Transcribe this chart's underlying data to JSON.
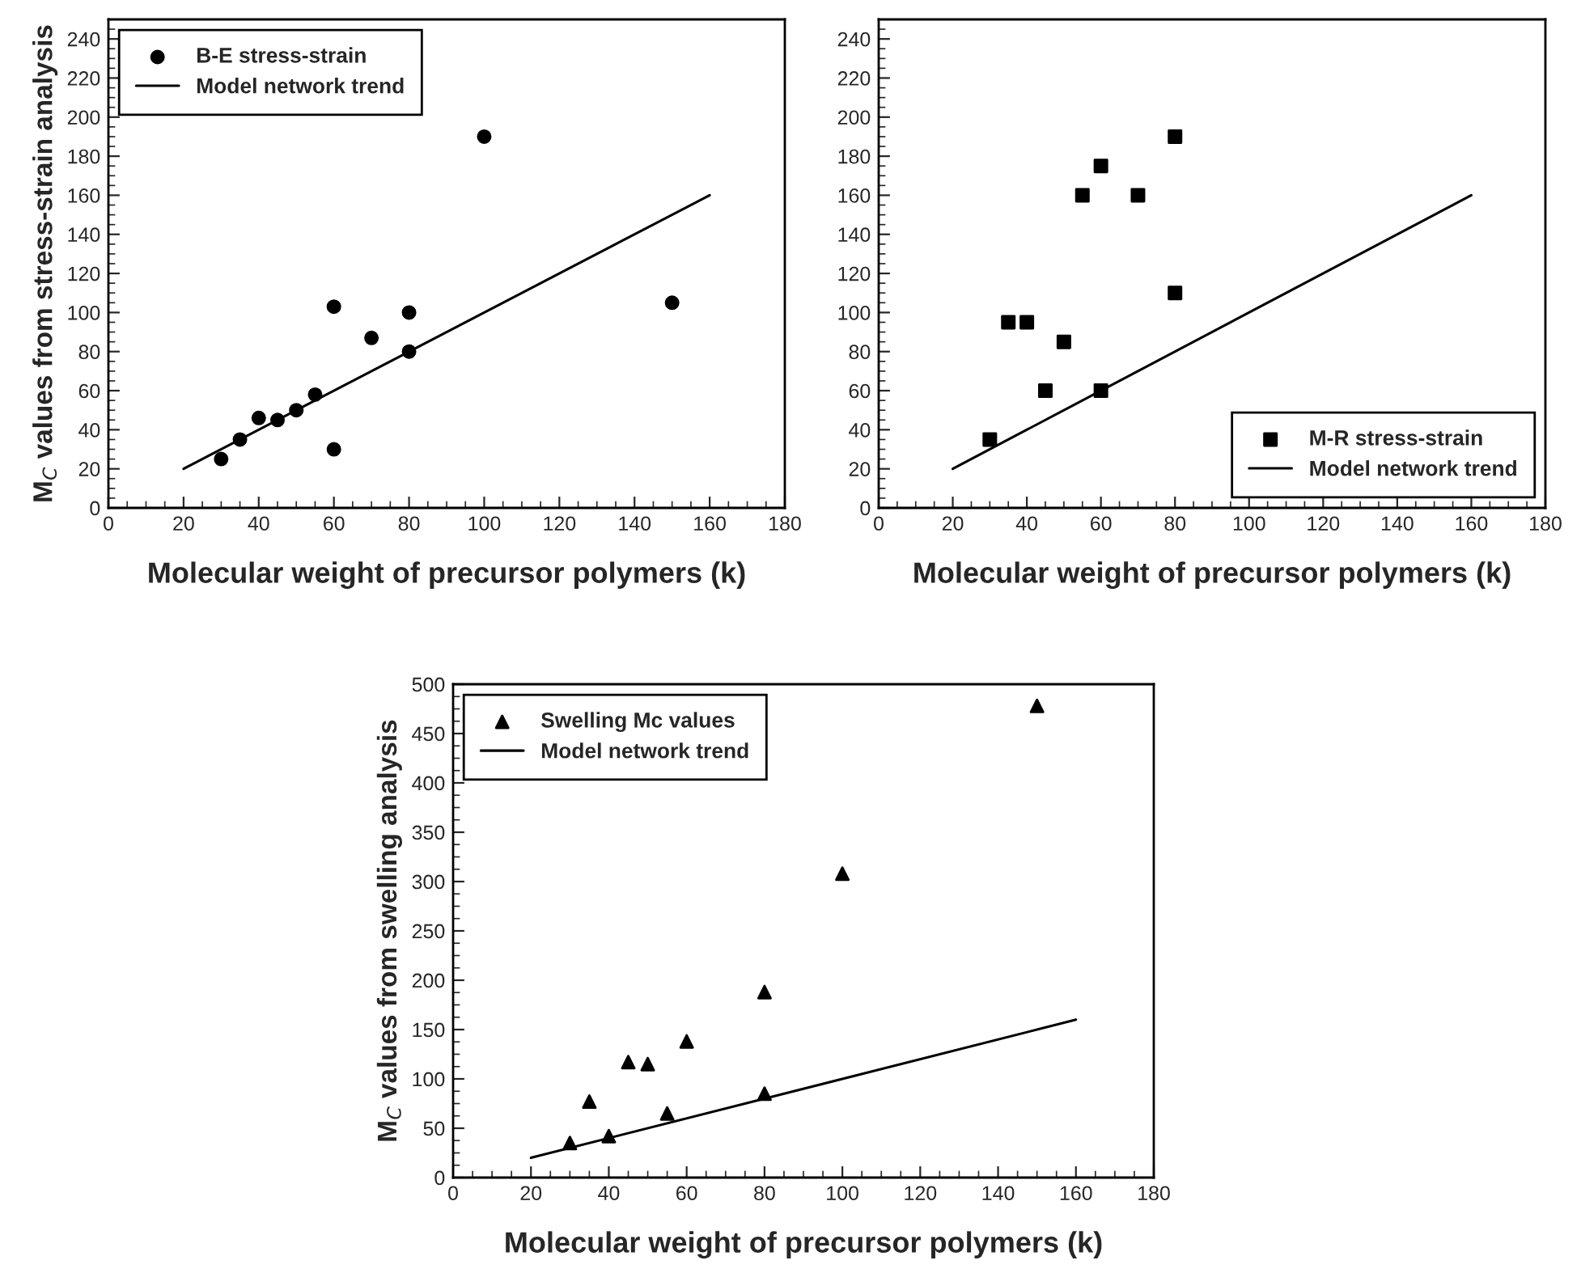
{
  "chart_data": [
    {
      "type": "scatter",
      "ylabel": "M$_{C}$ values from stress-strain analysis",
      "xlabel": "Molecular weight of precursor polymers (k)",
      "xlim": [
        0,
        180
      ],
      "ylim": [
        0,
        250
      ],
      "xticks": [
        0,
        20,
        40,
        60,
        80,
        100,
        120,
        140,
        160,
        180
      ],
      "yticks": [
        0,
        20,
        40,
        60,
        80,
        100,
        120,
        140,
        160,
        180,
        200,
        220,
        240
      ],
      "legend": "top left",
      "grid": false,
      "series": [
        {
          "name": "B-E stress-strain",
          "marker": "circle",
          "color": "#000000",
          "x": [
            30,
            35,
            40,
            45,
            50,
            55,
            60,
            60,
            70,
            80,
            80,
            100,
            150
          ],
          "values": [
            25,
            35,
            46,
            45,
            50,
            58,
            103,
            30,
            87,
            100,
            80,
            190,
            105
          ]
        },
        {
          "name": "Model network trend",
          "type": "line",
          "marker": "none",
          "line_style": "solid",
          "color": "#000000",
          "x": [
            20,
            160
          ],
          "values": [
            20,
            160
          ]
        }
      ]
    },
    {
      "type": "scatter",
      "xlabel": "Molecular weight of precursor polymers (k)",
      "xlim": [
        0,
        180
      ],
      "ylim": [
        0,
        250
      ],
      "xticks": [
        0,
        20,
        40,
        60,
        80,
        100,
        120,
        140,
        160,
        180
      ],
      "yticks": [
        0,
        20,
        40,
        60,
        80,
        100,
        120,
        140,
        160,
        180,
        200,
        220,
        240
      ],
      "legend": "bottom right",
      "grid": false,
      "series": [
        {
          "name": "M-R stress-strain",
          "marker": "square",
          "color": "#000000",
          "x": [
            30,
            35,
            40,
            45,
            50,
            55,
            60,
            60,
            70,
            80,
            80
          ],
          "values": [
            35,
            95,
            95,
            60,
            85,
            160,
            175,
            60,
            160,
            190,
            110
          ]
        },
        {
          "name": "Model network trend",
          "type": "line",
          "marker": "none",
          "line_style": "solid",
          "color": "#000000",
          "x": [
            20,
            160
          ],
          "values": [
            20,
            160
          ]
        }
      ]
    },
    {
      "type": "scatter",
      "ylabel": "M$_{C}$ values from swelling analysis",
      "xlabel": "Molecular weight of precursor polymers (k)",
      "xlim": [
        0,
        180
      ],
      "ylim": [
        0,
        500
      ],
      "xticks": [
        0,
        20,
        40,
        60,
        80,
        100,
        120,
        140,
        160,
        180
      ],
      "yticks": [
        0,
        50,
        100,
        150,
        200,
        250,
        300,
        350,
        400,
        450,
        500
      ],
      "legend": "top left",
      "grid": false,
      "series": [
        {
          "name": "Swelling Mc values",
          "marker": "triangle",
          "color": "#000000",
          "x": [
            30,
            35,
            40,
            45,
            50,
            55,
            60,
            80,
            80,
            100,
            150
          ],
          "values": [
            35,
            77,
            42,
            117,
            115,
            65,
            138,
            188,
            85,
            308,
            478
          ]
        },
        {
          "name": "Model network trend",
          "type": "line",
          "marker": "none",
          "line_style": "solid",
          "color": "#000000",
          "x": [
            20,
            160
          ],
          "values": [
            20,
            160
          ]
        }
      ]
    }
  ]
}
